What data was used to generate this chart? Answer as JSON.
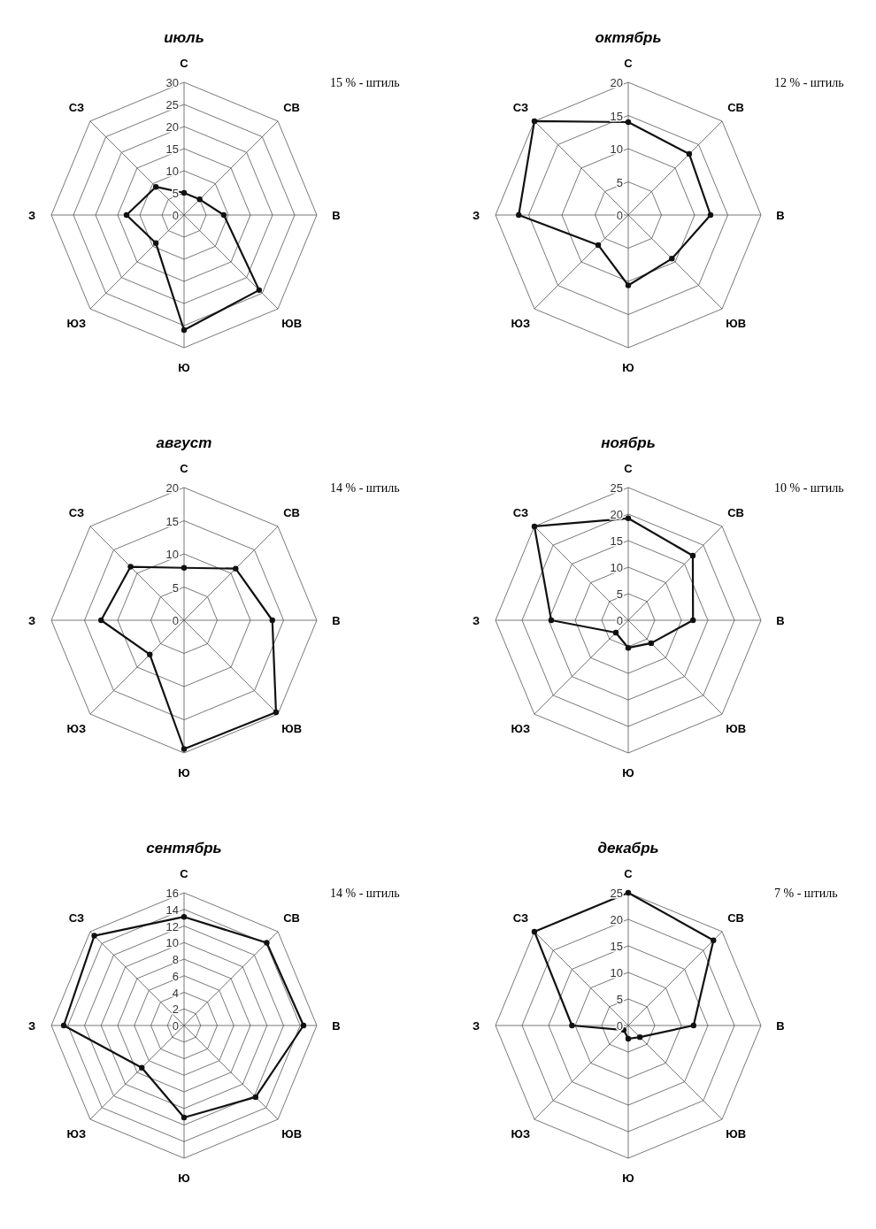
{
  "chart_data": [
    {
      "type": "radar",
      "title": "июль",
      "categories": [
        "С",
        "СВ",
        "В",
        "ЮВ",
        "Ю",
        "ЮЗ",
        "З",
        "СЗ"
      ],
      "series": [
        {
          "color": "#111111",
          "values": [
            5,
            5,
            9,
            24,
            26,
            9,
            13,
            9
          ]
        }
      ],
      "ylim": [
        0,
        30
      ],
      "yticks": [
        0,
        5,
        10,
        15,
        20,
        25,
        30
      ],
      "grid": true,
      "marker": "circle",
      "line_style": "solid",
      "annotations": [
        "15 % - штиль"
      ]
    },
    {
      "type": "radar",
      "title": "октябрь",
      "categories": [
        "С",
        "СВ",
        "В",
        "ЮВ",
        "Ю",
        "ЮЗ",
        "З",
        "СЗ"
      ],
      "series": [
        {
          "color": "#111111",
          "values": [
            14,
            13,
            12.4,
            9.3,
            10.6,
            6.4,
            16.5,
            20
          ]
        }
      ],
      "ylim": [
        0,
        20
      ],
      "yticks": [
        0,
        5,
        10,
        15,
        20
      ],
      "grid": true,
      "marker": "circle",
      "line_style": "solid",
      "annotations": [
        "12 % - штиль"
      ]
    },
    {
      "type": "radar",
      "title": "август",
      "categories": [
        "С",
        "СВ",
        "В",
        "ЮВ",
        "Ю",
        "ЮЗ",
        "З",
        "СЗ"
      ],
      "series": [
        {
          "color": "#111111",
          "values": [
            7.9,
            11,
            13.3,
            19.6,
            19.4,
            7.3,
            12.5,
            11.4
          ]
        }
      ],
      "ylim": [
        0,
        20
      ],
      "yticks": [
        0,
        5,
        10,
        15,
        20
      ],
      "grid": true,
      "marker": "circle",
      "line_style": "solid",
      "annotations": [
        "14 % - штиль"
      ]
    },
    {
      "type": "radar",
      "title": "ноябрь",
      "categories": [
        "С",
        "СВ",
        "В",
        "ЮВ",
        "Ю",
        "ЮЗ",
        "З",
        "СЗ"
      ],
      "series": [
        {
          "color": "#111111",
          "values": [
            19.2,
            17.2,
            12.2,
            6.1,
            5.2,
            3.3,
            14.5,
            25
          ]
        }
      ],
      "ylim": [
        0,
        25
      ],
      "yticks": [
        0,
        5,
        10,
        15,
        20,
        25
      ],
      "grid": true,
      "marker": "circle",
      "line_style": "solid",
      "annotations": [
        "10 % - штиль"
      ]
    },
    {
      "type": "radar",
      "title": "сентябрь",
      "categories": [
        "С",
        "СВ",
        "В",
        "ЮВ",
        "Ю",
        "ЮЗ",
        "З",
        "СЗ"
      ],
      "series": [
        {
          "color": "#111111",
          "values": [
            13.1,
            14.1,
            14.4,
            12.2,
            11.1,
            7.2,
            14.5,
            15.3
          ]
        }
      ],
      "ylim": [
        0,
        16
      ],
      "yticks": [
        0,
        2,
        4,
        6,
        8,
        10,
        12,
        14,
        16
      ],
      "grid": true,
      "marker": "circle",
      "line_style": "solid",
      "annotations": [
        "14 % - штиль"
      ]
    },
    {
      "type": "radar",
      "title": "декабрь",
      "categories": [
        "С",
        "СВ",
        "В",
        "ЮВ",
        "Ю",
        "ЮЗ",
        "З",
        "СЗ"
      ],
      "series": [
        {
          "color": "#111111",
          "values": [
            25,
            22.7,
            12.3,
            3.1,
            2.5,
            1.2,
            10.6,
            25
          ]
        }
      ],
      "ylim": [
        0,
        25
      ],
      "yticks": [
        0,
        5,
        10,
        15,
        20,
        25
      ],
      "grid": true,
      "marker": "circle",
      "line_style": "solid",
      "annotations": [
        "7 % - штиль"
      ]
    }
  ]
}
